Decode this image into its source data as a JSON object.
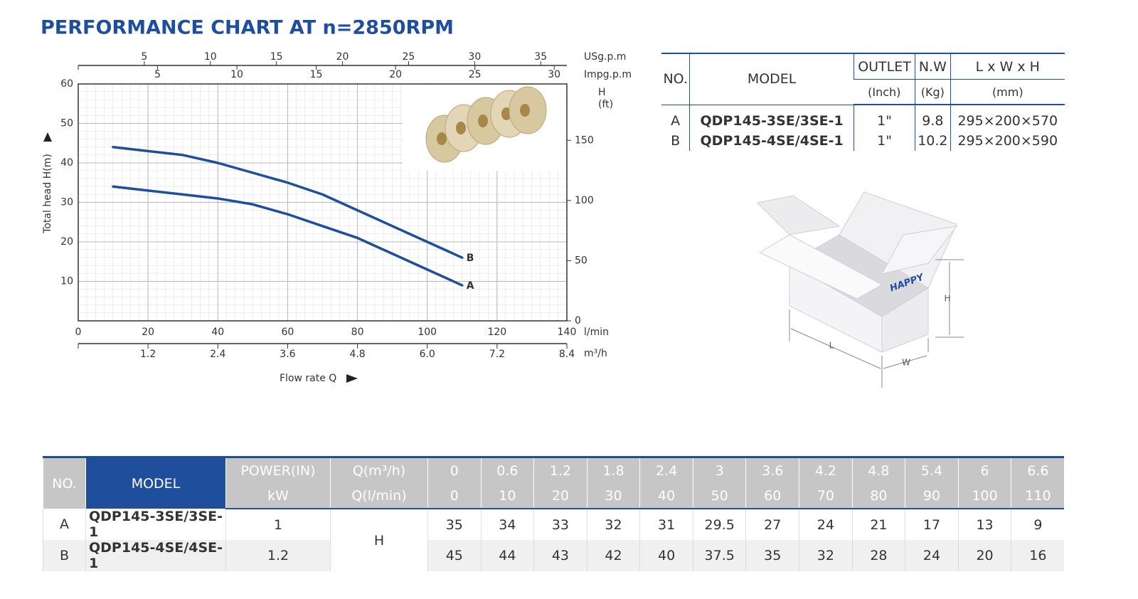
{
  "chart_data": {
    "type": "line",
    "title": "PERFORMANCE CHART AT n=2850RPM",
    "x": [
      10,
      20,
      30,
      40,
      50,
      60,
      70,
      80,
      90,
      100,
      110
    ],
    "series": [
      {
        "name": "A",
        "color": "#1f4e9c",
        "values": [
          34,
          33,
          32,
          31,
          29.5,
          27,
          24,
          21,
          17,
          13,
          9
        ]
      },
      {
        "name": "B",
        "color": "#1f4e9c",
        "values": [
          44,
          43,
          42,
          40,
          37.5,
          35,
          32,
          28,
          24,
          20,
          16
        ]
      }
    ],
    "xlim": [
      0,
      140
    ],
    "xticks": [
      0,
      20,
      40,
      60,
      80,
      100,
      120,
      140
    ],
    "x_unit": "l/min",
    "x_label": "Flow rate Q",
    "ylim": [
      0,
      60
    ],
    "yticks": [
      10,
      20,
      30,
      40,
      50,
      60
    ],
    "y_label": "Total  head H(m)",
    "y2lim": [
      0,
      196.85
    ],
    "y2ticks": [
      0,
      50,
      100,
      150
    ],
    "y2_label": [
      "H",
      "(ft)"
    ],
    "grid": true,
    "top_axes": [
      {
        "label": "USg.p.m",
        "lim": [
          0,
          36.98
        ],
        "ticks": [
          5,
          10,
          15,
          20,
          25,
          30,
          35
        ]
      },
      {
        "label": "Impg.p.m",
        "lim": [
          0,
          30.8
        ],
        "ticks": [
          5,
          10,
          15,
          20,
          25,
          30
        ]
      }
    ],
    "bottom_axis2": {
      "label": "m³/h",
      "lim": [
        0,
        8.4
      ],
      "ticks": [
        1.2,
        2.4,
        3.6,
        4.8,
        {
          "value": 6,
          "label": "6.0"
        },
        7.2,
        8.4
      ]
    }
  },
  "spec_table": {
    "header": [
      "NO.",
      "MODEL",
      "OUTLET",
      "N.W",
      "L x W x H"
    ],
    "units": [
      "(Inch)",
      "(Kg)",
      "(mm)"
    ],
    "rows": [
      [
        "A",
        "QDP145-3SE/3SE-1",
        "1\"",
        9.8,
        "295×200×570"
      ],
      [
        "B",
        "QDP145-4SE/4SE-1",
        "1\"",
        10.2,
        "295×200×590"
      ]
    ]
  },
  "box_diagram": {
    "brand": "HAPPY",
    "labels": [
      "H",
      "L",
      "W"
    ]
  },
  "performance_table": {
    "header": [
      "NO.",
      "MODEL"
    ],
    "power": [
      "POWER(IN)",
      "kW"
    ],
    "q_labels": [
      "Q(m³/h)",
      "Q(l/min)"
    ],
    "q_m3h": [
      0,
      0.6,
      1.2,
      1.8,
      2.4,
      3,
      3.6,
      4.2,
      4.8,
      5.4,
      6,
      6.6
    ],
    "q_lmin": [
      0,
      10,
      20,
      30,
      40,
      50,
      60,
      70,
      80,
      90,
      100,
      110
    ],
    "head_label": "H",
    "rows": [
      {
        "no": "A",
        "model": "QDP145-3SE/3SE-1",
        "power": 1,
        "values": [
          35,
          34,
          33,
          32,
          31,
          29.5,
          27,
          24,
          21,
          17,
          13,
          9
        ]
      },
      {
        "no": "B",
        "model": "QDP145-4SE/4SE-1",
        "power": 1.2,
        "values": [
          45,
          44,
          43,
          42,
          40,
          37.5,
          35,
          32,
          28,
          24,
          20,
          16
        ]
      }
    ]
  }
}
